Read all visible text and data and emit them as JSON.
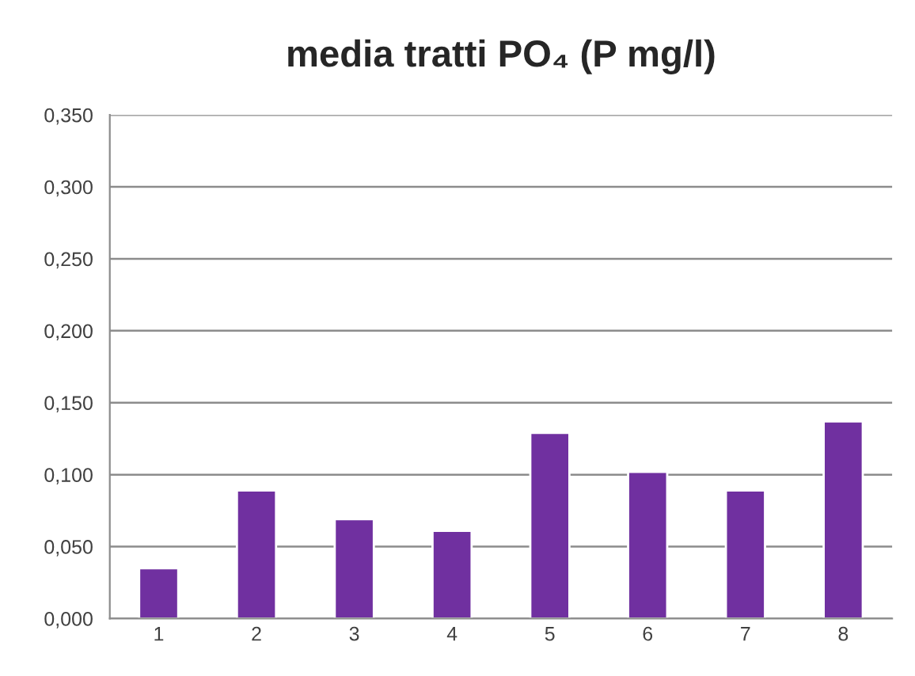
{
  "chart_data": {
    "type": "bar",
    "title": "media tratti PO₄ (P mg/l)",
    "categories": [
      "1",
      "2",
      "3",
      "4",
      "5",
      "6",
      "7",
      "8"
    ],
    "values": [
      0.035,
      0.089,
      0.069,
      0.061,
      0.129,
      0.102,
      0.089,
      0.137
    ],
    "color": "#7030a0",
    "ylim": [
      0,
      0.35
    ],
    "yticks": [
      {
        "value": 0,
        "label": "0,000"
      },
      {
        "value": 0.05,
        "label": "0,050"
      },
      {
        "value": 0.1,
        "label": "0,100"
      },
      {
        "value": 0.15,
        "label": "0,150"
      },
      {
        "value": 0.2,
        "label": "0,200"
      },
      {
        "value": 0.25,
        "label": "0,250"
      },
      {
        "value": 0.3,
        "label": "0,300"
      },
      {
        "value": 0.35,
        "label": "0,350"
      }
    ],
    "grid": "y"
  }
}
